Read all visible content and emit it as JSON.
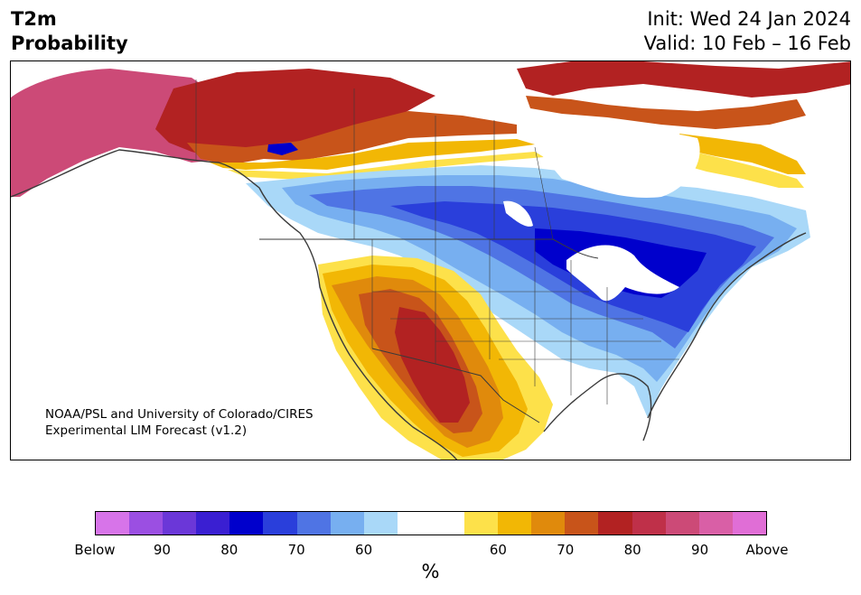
{
  "title": {
    "line1": "T2m",
    "line2": "Probability"
  },
  "dates": {
    "init": "Init: Wed 24 Jan 2024",
    "valid": "Valid: 10 Feb – 16 Feb"
  },
  "credit": {
    "line1": "NOAA/PSL and University of Colorado/CIRES",
    "line2": "Experimental LIM Forecast (v1.2)"
  },
  "colorbar": {
    "unit": "%",
    "colors": [
      "#d774e9",
      "#9b4fe2",
      "#6b37d8",
      "#3a1fd2",
      "#0000cc",
      "#2a3fdb",
      "#4f74e4",
      "#77aff0",
      "#a9d8f8",
      "#ffffff",
      "#ffffff",
      "#fde14a",
      "#f2b705",
      "#e08a0c",
      "#c8541a",
      "#b22222",
      "#bf3049",
      "#cc4a77",
      "#d95fa6",
      "#e06ed6"
    ],
    "tick_labels": [
      "Below",
      "90",
      "80",
      "70",
      "60",
      "60",
      "70",
      "80",
      "90",
      "Above"
    ]
  },
  "map": {
    "colors": {
      "land": "#ffffff",
      "border": "#3a3a3a",
      "above_90": "#cc4a77",
      "above_80": "#b22222",
      "above_70": "#c8541a",
      "above_65": "#e08a0c",
      "above_60": "#f2b705",
      "above_55": "#fde14a",
      "below_55": "#a9d8f8",
      "below_60": "#77aff0",
      "below_65": "#4f74e4",
      "below_70": "#2a3fdb",
      "below_80": "#0000cc"
    }
  }
}
